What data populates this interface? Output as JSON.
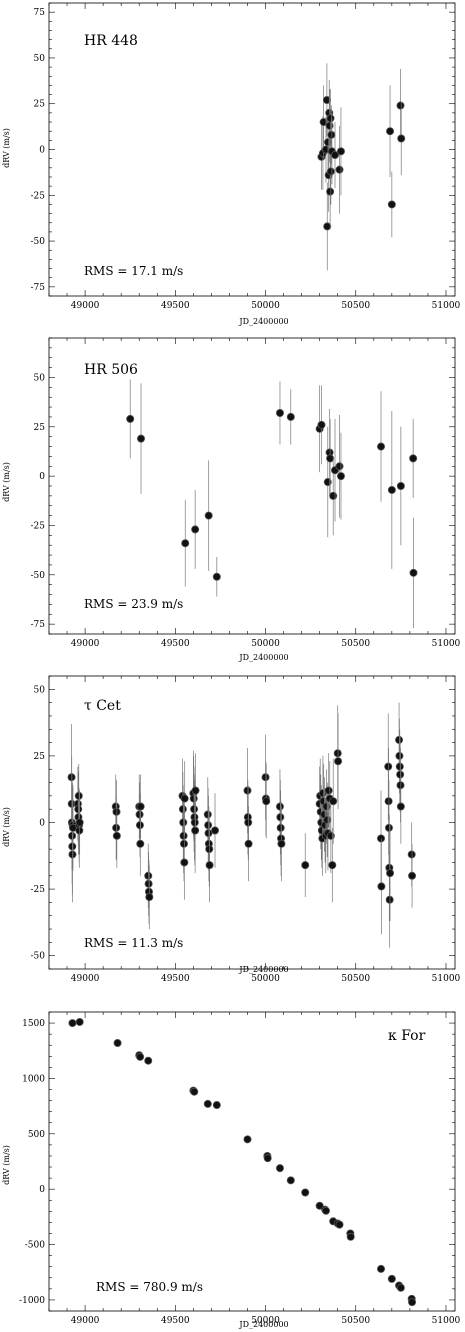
{
  "chart_data": [
    {
      "type": "scatter",
      "title": "HR 448",
      "annotation": "RMS  =  17.1  m/s",
      "xlabel": "JD_2400000",
      "ylabel": "dRV (m/s)",
      "xlim": [
        48800,
        51050
      ],
      "ylim": [
        -80,
        80
      ],
      "x_ticks": [
        49000,
        49500,
        50000,
        50500,
        51000
      ],
      "y_ticks": [
        -75,
        -50,
        -25,
        0,
        25,
        50,
        75
      ],
      "error_bars": true,
      "points": [
        {
          "x": 50310,
          "y": -4,
          "err": 18
        },
        {
          "x": 50318,
          "y": -2,
          "err": 20
        },
        {
          "x": 50322,
          "y": 15,
          "err": 20
        },
        {
          "x": 50335,
          "y": 0,
          "err": 18
        },
        {
          "x": 50340,
          "y": 27,
          "err": 20
        },
        {
          "x": 50342,
          "y": -42,
          "err": 24
        },
        {
          "x": 50346,
          "y": 4,
          "err": 18
        },
        {
          "x": 50350,
          "y": -14,
          "err": 20
        },
        {
          "x": 50353,
          "y": 20,
          "err": 18
        },
        {
          "x": 50355,
          "y": 13,
          "err": 20
        },
        {
          "x": 50358,
          "y": -23,
          "err": 20
        },
        {
          "x": 50360,
          "y": 17,
          "err": 16
        },
        {
          "x": 50362,
          "y": -12,
          "err": 18
        },
        {
          "x": 50365,
          "y": 8,
          "err": 16
        },
        {
          "x": 50368,
          "y": -1,
          "err": 18
        },
        {
          "x": 50385,
          "y": -3,
          "err": 18
        },
        {
          "x": 50410,
          "y": -11,
          "err": 24
        },
        {
          "x": 50418,
          "y": -1,
          "err": 24
        },
        {
          "x": 50690,
          "y": 10,
          "err": 25
        },
        {
          "x": 50700,
          "y": -30,
          "err": 18
        },
        {
          "x": 50748,
          "y": 24,
          "err": 20
        },
        {
          "x": 50752,
          "y": 6,
          "err": 20
        }
      ]
    },
    {
      "type": "scatter",
      "title": "HR 506",
      "annotation": "RMS  =  23.9  m/s",
      "xlabel": "JD_2400000",
      "ylabel": "dRV (m/s)",
      "xlim": [
        48800,
        51050
      ],
      "ylim": [
        -80,
        70
      ],
      "x_ticks": [
        49000,
        49500,
        50000,
        50500,
        51000
      ],
      "y_ticks": [
        -75,
        -50,
        -25,
        0,
        25,
        50
      ],
      "error_bars": true,
      "points": [
        {
          "x": 49250,
          "y": 29,
          "err": 20
        },
        {
          "x": 49310,
          "y": 19,
          "err": 28
        },
        {
          "x": 49555,
          "y": -34,
          "err": 22
        },
        {
          "x": 49610,
          "y": -27,
          "err": 20
        },
        {
          "x": 49685,
          "y": -20,
          "err": 28
        },
        {
          "x": 49730,
          "y": -51,
          "err": 10
        },
        {
          "x": 50080,
          "y": 32,
          "err": 16
        },
        {
          "x": 50140,
          "y": 30,
          "err": 14
        },
        {
          "x": 50300,
          "y": 24,
          "err": 22
        },
        {
          "x": 50310,
          "y": 26,
          "err": 20
        },
        {
          "x": 50345,
          "y": -3,
          "err": 28
        },
        {
          "x": 50355,
          "y": 12,
          "err": 22
        },
        {
          "x": 50358,
          "y": 9,
          "err": 20
        },
        {
          "x": 50375,
          "y": -10,
          "err": 20
        },
        {
          "x": 50385,
          "y": 3,
          "err": 26
        },
        {
          "x": 50410,
          "y": 5,
          "err": 26
        },
        {
          "x": 50418,
          "y": 0,
          "err": 22
        },
        {
          "x": 50640,
          "y": 15,
          "err": 28
        },
        {
          "x": 50700,
          "y": -7,
          "err": 40
        },
        {
          "x": 50750,
          "y": -5,
          "err": 30
        },
        {
          "x": 50818,
          "y": 9,
          "err": 20
        },
        {
          "x": 50820,
          "y": -49,
          "err": 28
        }
      ]
    },
    {
      "type": "scatter",
      "title": "τ Cet",
      "annotation": "RMS  =  11.3  m/s",
      "xlabel": "JD_2400000",
      "ylabel": "dRV (m/s)",
      "xlim": [
        48800,
        51050
      ],
      "ylim": [
        -55,
        55
      ],
      "x_ticks": [
        49000,
        49500,
        50000,
        50500,
        51000
      ],
      "y_ticks": [
        -50,
        -25,
        0,
        25,
        50
      ],
      "error_bars": true,
      "points": [
        {
          "x": 48925,
          "y": 17,
          "err": 20
        },
        {
          "x": 48926,
          "y": 7,
          "err": 18
        },
        {
          "x": 48927,
          "y": 0,
          "err": 18
        },
        {
          "x": 48928,
          "y": -5,
          "err": 18
        },
        {
          "x": 48929,
          "y": -9,
          "err": 18
        },
        {
          "x": 48930,
          "y": -12,
          "err": 18
        },
        {
          "x": 48931,
          "y": -1,
          "err": 16
        },
        {
          "x": 48933,
          "y": -2,
          "err": 16
        },
        {
          "x": 48960,
          "y": 7,
          "err": 14
        },
        {
          "x": 48962,
          "y": 5,
          "err": 14
        },
        {
          "x": 48963,
          "y": 2,
          "err": 14
        },
        {
          "x": 48965,
          "y": 10,
          "err": 12
        },
        {
          "x": 48967,
          "y": -1,
          "err": 14
        },
        {
          "x": 48968,
          "y": -3,
          "err": 14
        },
        {
          "x": 48970,
          "y": 0,
          "err": 12
        },
        {
          "x": 49170,
          "y": 6,
          "err": 12
        },
        {
          "x": 49172,
          "y": -2,
          "err": 12
        },
        {
          "x": 49174,
          "y": 4,
          "err": 12
        },
        {
          "x": 49176,
          "y": -5,
          "err": 12
        },
        {
          "x": 49300,
          "y": 6,
          "err": 12
        },
        {
          "x": 49302,
          "y": 3,
          "err": 12
        },
        {
          "x": 49304,
          "y": -1,
          "err": 12
        },
        {
          "x": 49306,
          "y": -8,
          "err": 12
        },
        {
          "x": 49308,
          "y": 6,
          "err": 12
        },
        {
          "x": 49350,
          "y": -20,
          "err": 12
        },
        {
          "x": 49352,
          "y": -23,
          "err": 12
        },
        {
          "x": 49354,
          "y": -26,
          "err": 12
        },
        {
          "x": 49356,
          "y": -28,
          "err": 12
        },
        {
          "x": 49540,
          "y": 10,
          "err": 14
        },
        {
          "x": 49542,
          "y": 5,
          "err": 14
        },
        {
          "x": 49544,
          "y": 0,
          "err": 14
        },
        {
          "x": 49546,
          "y": -5,
          "err": 14
        },
        {
          "x": 49548,
          "y": -8,
          "err": 14
        },
        {
          "x": 49550,
          "y": -15,
          "err": 14
        },
        {
          "x": 49552,
          "y": 9,
          "err": 14
        },
        {
          "x": 49600,
          "y": 11,
          "err": 16
        },
        {
          "x": 49602,
          "y": 9,
          "err": 16
        },
        {
          "x": 49604,
          "y": 5,
          "err": 16
        },
        {
          "x": 49606,
          "y": 2,
          "err": 16
        },
        {
          "x": 49608,
          "y": 0,
          "err": 16
        },
        {
          "x": 49610,
          "y": -3,
          "err": 16
        },
        {
          "x": 49612,
          "y": 12,
          "err": 14
        },
        {
          "x": 49680,
          "y": 3,
          "err": 14
        },
        {
          "x": 49682,
          "y": -1,
          "err": 14
        },
        {
          "x": 49684,
          "y": -4,
          "err": 14
        },
        {
          "x": 49686,
          "y": -8,
          "err": 14
        },
        {
          "x": 49688,
          "y": -10,
          "err": 14
        },
        {
          "x": 49690,
          "y": -16,
          "err": 14
        },
        {
          "x": 49720,
          "y": -3,
          "err": 14
        },
        {
          "x": 49900,
          "y": 12,
          "err": 16
        },
        {
          "x": 49902,
          "y": 2,
          "err": 14
        },
        {
          "x": 49904,
          "y": 0,
          "err": 14
        },
        {
          "x": 49906,
          "y": -8,
          "err": 14
        },
        {
          "x": 50000,
          "y": 17,
          "err": 16
        },
        {
          "x": 50002,
          "y": 9,
          "err": 14
        },
        {
          "x": 50004,
          "y": 8,
          "err": 14
        },
        {
          "x": 50080,
          "y": 6,
          "err": 14
        },
        {
          "x": 50082,
          "y": 2,
          "err": 14
        },
        {
          "x": 50084,
          "y": -2,
          "err": 14
        },
        {
          "x": 50086,
          "y": -6,
          "err": 14
        },
        {
          "x": 50088,
          "y": -8,
          "err": 14
        },
        {
          "x": 50220,
          "y": -16,
          "err": 12
        },
        {
          "x": 50300,
          "y": 7,
          "err": 14
        },
        {
          "x": 50303,
          "y": 10,
          "err": 14
        },
        {
          "x": 50306,
          "y": 4,
          "err": 14
        },
        {
          "x": 50309,
          "y": 0,
          "err": 14
        },
        {
          "x": 50312,
          "y": -3,
          "err": 14
        },
        {
          "x": 50315,
          "y": -6,
          "err": 14
        },
        {
          "x": 50318,
          "y": 11,
          "err": 14
        },
        {
          "x": 50322,
          "y": 8,
          "err": 14
        },
        {
          "x": 50326,
          "y": 3,
          "err": 14
        },
        {
          "x": 50330,
          "y": -1,
          "err": 14
        },
        {
          "x": 50334,
          "y": -5,
          "err": 14
        },
        {
          "x": 50338,
          "y": 6,
          "err": 14
        },
        {
          "x": 50342,
          "y": 1,
          "err": 14
        },
        {
          "x": 50346,
          "y": -4,
          "err": 14
        },
        {
          "x": 50350,
          "y": 12,
          "err": 14
        },
        {
          "x": 50356,
          "y": 9,
          "err": 14
        },
        {
          "x": 50362,
          "y": -5,
          "err": 14
        },
        {
          "x": 50370,
          "y": -16,
          "err": 14
        },
        {
          "x": 50375,
          "y": 8,
          "err": 16
        },
        {
          "x": 50400,
          "y": 26,
          "err": 18
        },
        {
          "x": 50402,
          "y": 23,
          "err": 18
        },
        {
          "x": 50640,
          "y": -6,
          "err": 18
        },
        {
          "x": 50642,
          "y": -24,
          "err": 18
        },
        {
          "x": 50680,
          "y": 21,
          "err": 20
        },
        {
          "x": 50682,
          "y": 8,
          "err": 20
        },
        {
          "x": 50684,
          "y": -2,
          "err": 18
        },
        {
          "x": 50686,
          "y": -17,
          "err": 20
        },
        {
          "x": 50688,
          "y": -29,
          "err": 18
        },
        {
          "x": 50690,
          "y": -19,
          "err": 18
        },
        {
          "x": 50740,
          "y": 31,
          "err": 14
        },
        {
          "x": 50742,
          "y": 25,
          "err": 14
        },
        {
          "x": 50744,
          "y": 21,
          "err": 14
        },
        {
          "x": 50746,
          "y": 18,
          "err": 14
        },
        {
          "x": 50748,
          "y": 14,
          "err": 14
        },
        {
          "x": 50750,
          "y": 6,
          "err": 14
        },
        {
          "x": 50810,
          "y": -12,
          "err": 12
        },
        {
          "x": 50812,
          "y": -20,
          "err": 12
        }
      ]
    },
    {
      "type": "scatter",
      "title": "κ For",
      "annotation": "RMS  =  780.9  m/s",
      "xlabel": "JD_2400000",
      "ylabel": "dRV (m/s)",
      "xlim": [
        48800,
        51050
      ],
      "ylim": [
        -1100,
        1600
      ],
      "x_ticks": [
        49000,
        49500,
        50000,
        50500,
        51000
      ],
      "y_ticks": [
        -1000,
        -500,
        0,
        500,
        1000,
        1500
      ],
      "error_bars": false,
      "points": [
        {
          "x": 48930,
          "y": 1500
        },
        {
          "x": 48970,
          "y": 1510
        },
        {
          "x": 49180,
          "y": 1320
        },
        {
          "x": 49300,
          "y": 1210
        },
        {
          "x": 49305,
          "y": 1195
        },
        {
          "x": 49350,
          "y": 1160
        },
        {
          "x": 49600,
          "y": 890
        },
        {
          "x": 49605,
          "y": 880
        },
        {
          "x": 49680,
          "y": 770
        },
        {
          "x": 49730,
          "y": 760
        },
        {
          "x": 49900,
          "y": 450
        },
        {
          "x": 50010,
          "y": 300
        },
        {
          "x": 50012,
          "y": 280
        },
        {
          "x": 50080,
          "y": 190
        },
        {
          "x": 50140,
          "y": 80
        },
        {
          "x": 50220,
          "y": -30
        },
        {
          "x": 50300,
          "y": -150
        },
        {
          "x": 50330,
          "y": -185
        },
        {
          "x": 50335,
          "y": -195
        },
        {
          "x": 50375,
          "y": -290
        },
        {
          "x": 50400,
          "y": -310
        },
        {
          "x": 50410,
          "y": -320
        },
        {
          "x": 50470,
          "y": -400
        },
        {
          "x": 50472,
          "y": -430
        },
        {
          "x": 50640,
          "y": -720
        },
        {
          "x": 50700,
          "y": -810
        },
        {
          "x": 50740,
          "y": -870
        },
        {
          "x": 50750,
          "y": -890
        },
        {
          "x": 50810,
          "y": -990
        },
        {
          "x": 50812,
          "y": -1020
        }
      ]
    }
  ]
}
